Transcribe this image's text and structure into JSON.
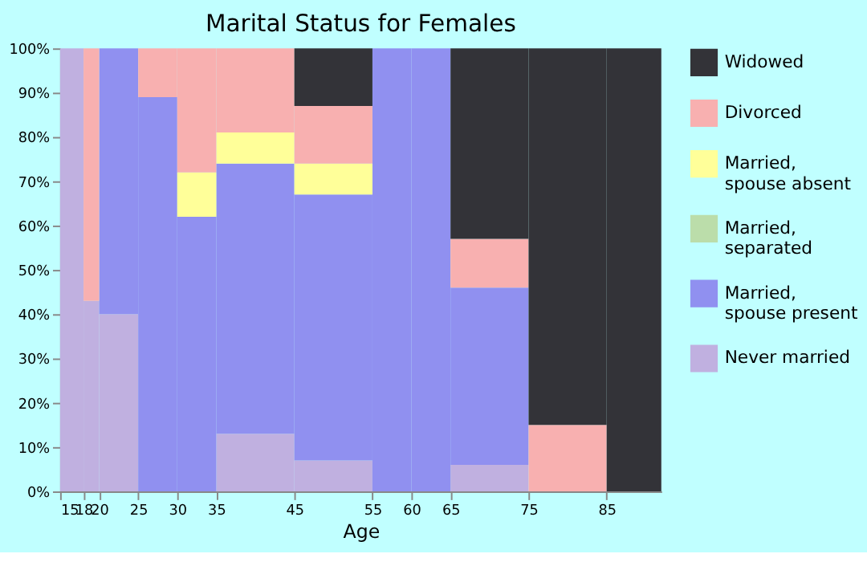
{
  "chart_data": {
    "type": "bar",
    "stacked": true,
    "title": "Marital Status for Females",
    "xlabel": "Age",
    "x": [
      16.5,
      19,
      22.5,
      27.5,
      32.5,
      40,
      50,
      57.5,
      62.5,
      70,
      80,
      88.5
    ],
    "xlim": [
      15,
      92
    ],
    "xticks": [
      15,
      18,
      20,
      25,
      30,
      35,
      45,
      55,
      60,
      65,
      75,
      85
    ],
    "ylim": [
      0,
      100
    ],
    "yticks": [
      {
        "value": 0,
        "label": "0%"
      },
      {
        "value": 10,
        "label": "10%"
      },
      {
        "value": 20,
        "label": "20%"
      },
      {
        "value": 30,
        "label": "30%"
      },
      {
        "value": 40,
        "label": "40%"
      },
      {
        "value": 50,
        "label": "50%"
      },
      {
        "value": 60,
        "label": "60%"
      },
      {
        "value": 70,
        "label": "70%"
      },
      {
        "value": 80,
        "label": "80%"
      },
      {
        "value": 90,
        "label": "90%"
      },
      {
        "value": 100,
        "label": "100%"
      }
    ],
    "grid": false,
    "legend": "right",
    "series": [
      {
        "name": "Never married",
        "color": "#c0b0e0",
        "values": [
          100,
          43,
          40,
          0,
          0,
          13,
          7,
          0,
          0,
          6,
          0,
          0
        ]
      },
      {
        "name": "Married,\nspouse present",
        "color": "#9090f0",
        "values": [
          0,
          0,
          60,
          89,
          62,
          61,
          60,
          100,
          100,
          40,
          0,
          0
        ]
      },
      {
        "name": "Married,\nseparated",
        "color": "#bbddaa",
        "values": [
          0,
          0,
          0,
          0,
          0,
          0,
          0,
          0,
          0,
          0,
          0,
          0
        ]
      },
      {
        "name": "Married,\nspouse absent",
        "color": "#ffff99",
        "values": [
          0,
          0,
          0,
          0,
          10,
          7,
          7,
          0,
          0,
          0,
          0,
          0
        ]
      },
      {
        "name": "Divorced",
        "color": "#f8b0b0",
        "values": [
          0,
          57,
          0,
          11,
          28,
          19,
          13,
          0,
          0,
          11,
          15,
          0
        ]
      },
      {
        "name": "Widowed",
        "color": "#333338",
        "values": [
          0,
          0,
          0,
          0,
          0,
          0,
          13,
          0,
          0,
          43,
          85,
          100
        ]
      }
    ]
  }
}
